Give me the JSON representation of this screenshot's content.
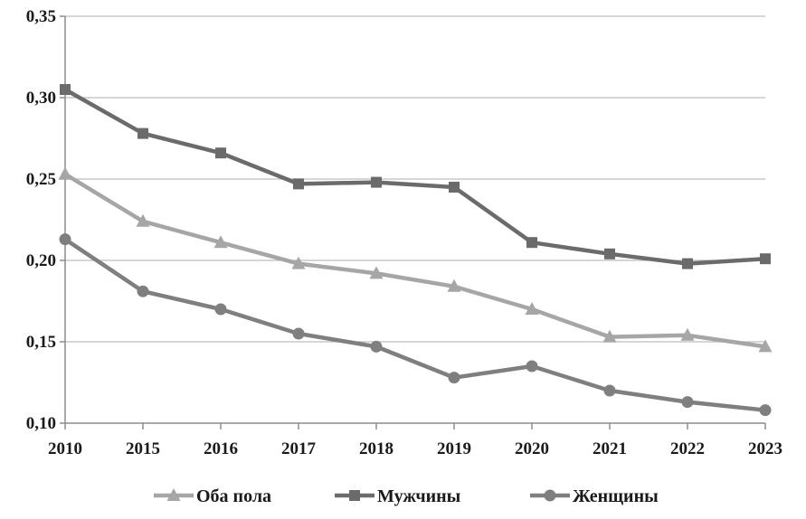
{
  "chart_data": {
    "type": "line",
    "categories": [
      "2010",
      "2015",
      "2016",
      "2017",
      "2018",
      "2019",
      "2020",
      "2021",
      "2022",
      "2023"
    ],
    "ylim": [
      0.1,
      0.35
    ],
    "yticks": [
      "0,10",
      "0,15",
      "0,20",
      "0,25",
      "0,30",
      "0,35"
    ],
    "ytick_values": [
      0.1,
      0.15,
      0.2,
      0.25,
      0.3,
      0.35
    ],
    "grid": true,
    "legend_position": "bottom",
    "series": [
      {
        "name": "Оба пола",
        "marker": "triangle",
        "color": "#a6a6a6",
        "values": [
          0.253,
          0.224,
          0.211,
          0.198,
          0.192,
          0.184,
          0.17,
          0.153,
          0.154,
          0.147
        ]
      },
      {
        "name": "Мужчины",
        "marker": "square",
        "color": "#6b6b6b",
        "values": [
          0.305,
          0.278,
          0.266,
          0.247,
          0.248,
          0.245,
          0.211,
          0.204,
          0.198,
          0.201
        ]
      },
      {
        "name": "Женщины",
        "marker": "circle",
        "color": "#7f7f7f",
        "values": [
          0.213,
          0.181,
          0.17,
          0.155,
          0.147,
          0.128,
          0.135,
          0.12,
          0.113,
          0.108
        ]
      }
    ]
  }
}
